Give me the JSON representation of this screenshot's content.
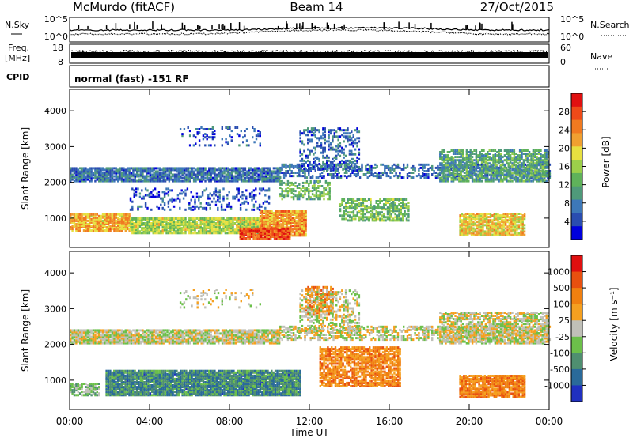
{
  "header": {
    "site": "McMurdo (fitACF)",
    "beam": "Beam 14",
    "date": "27/Oct/2015",
    "mode_text": "normal (fast) -151 RF"
  },
  "side_labels": {
    "nsky": "N.Sky",
    "nsearch": "N.Search",
    "freq": "Freq.",
    "freq_unit": "[MHz]",
    "nave": "Nave",
    "cpid": "CPID"
  },
  "noise_axis": {
    "top": "10^5",
    "bottom": "10^0"
  },
  "freq_axis": {
    "top": "18",
    "bottom": "8"
  },
  "nave_axis": {
    "top": "60",
    "bottom": "0"
  },
  "time_axis": {
    "label": "Time UT",
    "ticks": [
      "00:00",
      "04:00",
      "08:00",
      "12:00",
      "16:00",
      "20:00",
      "00:00"
    ]
  },
  "chart_data": [
    {
      "type": "heatmap",
      "ylabel": "Slant Range [km]",
      "yticks": [
        1000,
        2000,
        3000,
        4000
      ],
      "ylim": [
        180,
        4600
      ],
      "xlim_hours": [
        0,
        24
      ],
      "colorbar": {
        "label": "Power [dB]",
        "ticks": [
          "4",
          "8",
          "12",
          "16",
          "20",
          "24",
          "28"
        ],
        "colors": [
          "#0000dd",
          "#2a4db0",
          "#3d78b8",
          "#4f9a7a",
          "#5fb25a",
          "#9cd04a",
          "#e7e040",
          "#f0a030",
          "#f07a20",
          "#ee4a18",
          "#e01010"
        ]
      },
      "bands": [
        {
          "h0": 0.0,
          "h1": 10.5,
          "r0": 2000,
          "r1": 2400,
          "level": 0.22,
          "density": 0.85
        },
        {
          "h0": 10.5,
          "h1": 24.0,
          "r0": 2100,
          "r1": 2500,
          "level": 0.2,
          "density": 0.45
        },
        {
          "h0": 18.5,
          "h1": 24.0,
          "r0": 2000,
          "r1": 2900,
          "level": 0.35,
          "density": 0.7
        },
        {
          "h0": 0.0,
          "h1": 3.0,
          "r0": 620,
          "r1": 1100,
          "level": 0.68,
          "density": 0.9
        },
        {
          "h0": 3.0,
          "h1": 9.5,
          "r0": 550,
          "r1": 1000,
          "level": 0.52,
          "density": 0.9
        },
        {
          "h0": 9.5,
          "h1": 11.8,
          "r0": 480,
          "r1": 1200,
          "level": 0.72,
          "density": 0.95
        },
        {
          "h0": 8.5,
          "h1": 11.0,
          "r0": 400,
          "r1": 700,
          "level": 0.85,
          "density": 0.95
        },
        {
          "h0": 10.5,
          "h1": 13.0,
          "r0": 1500,
          "r1": 2000,
          "level": 0.4,
          "density": 0.5
        },
        {
          "h0": 13.5,
          "h1": 17.0,
          "r0": 900,
          "r1": 1500,
          "level": 0.42,
          "density": 0.6
        },
        {
          "h0": 11.5,
          "h1": 14.5,
          "r0": 2300,
          "r1": 3500,
          "level": 0.2,
          "density": 0.35
        },
        {
          "h0": 19.5,
          "h1": 22.8,
          "r0": 500,
          "r1": 1100,
          "level": 0.62,
          "density": 0.85
        },
        {
          "h0": 3.0,
          "h1": 10.0,
          "r0": 1200,
          "r1": 1800,
          "level": 0.15,
          "density": 0.25
        },
        {
          "h0": 5.5,
          "h1": 9.5,
          "r0": 3000,
          "r1": 3500,
          "level": 0.15,
          "density": 0.15
        }
      ]
    },
    {
      "type": "heatmap",
      "ylabel": "Slant Range [km]",
      "yticks": [
        1000,
        2000,
        3000,
        4000
      ],
      "ylim": [
        180,
        4600
      ],
      "xlim_hours": [
        0,
        24
      ],
      "colorbar": {
        "label": "Velocity [m s⁻¹]",
        "ticks": [
          "1000",
          "500",
          "100",
          "25",
          "-25",
          "-100",
          "-500",
          "-1000"
        ],
        "colors": [
          "#2030c0",
          "#2a6a9a",
          "#4f8f70",
          "#6cc04a",
          "#c0c0b8",
          "#f5a020",
          "#f08010",
          "#e85010",
          "#e01010"
        ]
      },
      "bands": [
        {
          "h0": 0.0,
          "h1": 10.5,
          "r0": 2000,
          "r1": 2400,
          "level": 0.5,
          "density": 0.85
        },
        {
          "h0": 10.5,
          "h1": 24.0,
          "r0": 2100,
          "r1": 2500,
          "level": 0.5,
          "density": 0.45
        },
        {
          "h0": 18.5,
          "h1": 24.0,
          "r0": 2000,
          "r1": 2900,
          "level": 0.5,
          "density": 0.7
        },
        {
          "h0": 0.0,
          "h1": 1.5,
          "r0": 550,
          "r1": 900,
          "level": 0.4,
          "density": 0.7
        },
        {
          "h0": 1.8,
          "h1": 11.5,
          "r0": 550,
          "r1": 1250,
          "level": 0.25,
          "density": 0.95
        },
        {
          "h0": 11.8,
          "h1": 13.2,
          "r0": 2800,
          "r1": 3600,
          "level": 0.7,
          "density": 0.6
        },
        {
          "h0": 12.5,
          "h1": 16.5,
          "r0": 800,
          "r1": 1900,
          "level": 0.7,
          "density": 0.75
        },
        {
          "h0": 19.5,
          "h1": 22.8,
          "r0": 500,
          "r1": 1100,
          "level": 0.72,
          "density": 0.9
        },
        {
          "h0": 11.5,
          "h1": 14.5,
          "r0": 2300,
          "r1": 3500,
          "level": 0.5,
          "density": 0.35
        },
        {
          "h0": 5.5,
          "h1": 9.5,
          "r0": 3000,
          "r1": 3500,
          "level": 0.5,
          "density": 0.15
        }
      ]
    }
  ]
}
